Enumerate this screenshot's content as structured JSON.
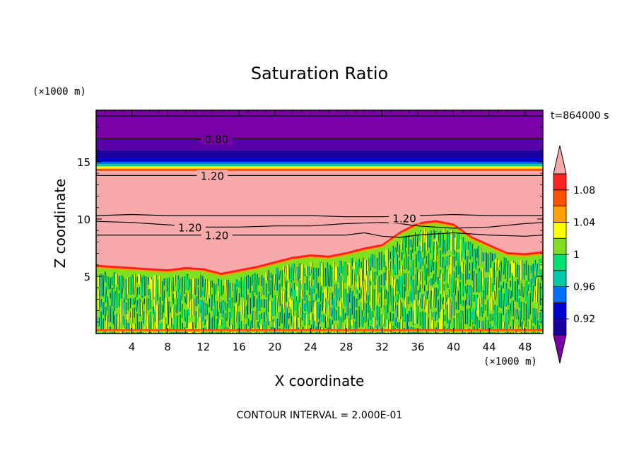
{
  "chart_data": {
    "type": "heatmap",
    "title": "Saturation Ratio",
    "xlabel": "X coordinate",
    "ylabel": "Z coordinate",
    "x_unit": "(×1000 m)",
    "z_unit": "(×1000 m)",
    "time_label": "t=864000 s",
    "footer": "CONTOUR INTERVAL = 2.000E-01",
    "xlim": [
      0,
      50
    ],
    "zlim": [
      0,
      19.5
    ],
    "x_ticks": [
      4,
      8,
      12,
      16,
      20,
      24,
      28,
      32,
      36,
      40,
      44,
      48
    ],
    "z_ticks": [
      5,
      10,
      15
    ],
    "colorbar": {
      "levels": [
        0.92,
        0.94,
        0.96,
        0.98,
        1.0,
        1.02,
        1.04,
        1.06,
        1.08
      ],
      "tick_labels": [
        "1.08",
        "1.04",
        "1",
        "0.96",
        "0.92"
      ],
      "tick_values": [
        1.08,
        1.04,
        1.0,
        0.96,
        0.92
      ],
      "colors": [
        "#7a00a8",
        "#1c00a0",
        "#0000cc",
        "#0070ff",
        "#00c8aa",
        "#00e070",
        "#80e020",
        "#ffff00",
        "#ffa000",
        "#ff5000",
        "#ff2020",
        "#f8aaaa"
      ]
    },
    "bands": [
      {
        "z_min": 17.0,
        "z_max": 19.5,
        "color": "#7a00a8"
      },
      {
        "z_min": 16.0,
        "z_max": 17.0,
        "color": "#5a00a8"
      },
      {
        "z_min": 15.3,
        "z_max": 16.0,
        "color": "#1c00a0"
      },
      {
        "z_min": 15.0,
        "z_max": 15.3,
        "color": "#0000cc"
      },
      {
        "z_min": 14.8,
        "z_max": 15.0,
        "color": "#0070ff"
      },
      {
        "z_min": 14.6,
        "z_max": 14.8,
        "color": "#00c8aa"
      },
      {
        "z_min": 14.4,
        "z_max": 14.6,
        "color": "#ffff00"
      },
      {
        "z_min": 14.2,
        "z_max": 14.4,
        "color": "#ff5000"
      }
    ],
    "contour_labels": [
      {
        "label": "0.80",
        "x": 13.5,
        "z": 17.0
      },
      {
        "label": "1.20",
        "x": 13.0,
        "z": 13.8
      },
      {
        "label": "1.20",
        "x": 34.5,
        "z": 10.1
      },
      {
        "label": "1.20",
        "x": 10.5,
        "z": 9.3
      },
      {
        "label": "1.20",
        "x": 13.5,
        "z": 8.6
      }
    ],
    "contour_lines": [
      {
        "value": 0.8,
        "x": [
          0,
          50
        ],
        "z": [
          17.0,
          17.0
        ]
      },
      {
        "value": 0.8,
        "x": [
          0,
          50
        ],
        "z": [
          19.0,
          19.0
        ]
      },
      {
        "value": 1.2,
        "x": [
          0,
          50
        ],
        "z": [
          13.8,
          13.8
        ]
      },
      {
        "value": 1.2,
        "x": [
          0,
          4,
          8,
          12,
          16,
          20,
          24,
          28,
          32,
          36,
          40,
          44,
          48,
          50
        ],
        "z": [
          10.3,
          10.4,
          10.3,
          10.3,
          10.3,
          10.3,
          10.3,
          10.2,
          10.2,
          10.3,
          10.4,
          10.3,
          10.3,
          10.3
        ]
      },
      {
        "value": 1.2,
        "x": [
          0,
          4,
          8,
          12,
          16,
          20,
          24,
          28,
          32,
          34,
          36,
          40,
          44,
          48,
          50
        ],
        "z": [
          9.8,
          9.7,
          9.5,
          9.3,
          9.3,
          9.4,
          9.4,
          9.6,
          9.7,
          9.6,
          9.4,
          9.2,
          9.3,
          9.6,
          9.7
        ]
      },
      {
        "value": 1.2,
        "x": [
          0,
          4,
          8,
          12,
          16,
          20,
          24,
          28,
          30,
          32,
          34,
          36,
          40,
          44,
          48,
          50
        ],
        "z": [
          8.6,
          8.6,
          8.6,
          8.6,
          8.6,
          8.6,
          8.6,
          8.6,
          8.8,
          8.5,
          8.4,
          8.6,
          8.8,
          8.6,
          8.5,
          8.6
        ]
      }
    ],
    "cloud_top": {
      "x": [
        0,
        2,
        4,
        6,
        8,
        10,
        12,
        14,
        16,
        18,
        20,
        22,
        24,
        26,
        28,
        30,
        32,
        34,
        36,
        38,
        40,
        42,
        44,
        46,
        48,
        50
      ],
      "z": [
        5.7,
        5.6,
        5.5,
        5.4,
        5.3,
        5.5,
        5.4,
        5.0,
        5.3,
        5.6,
        6.0,
        6.4,
        6.6,
        6.5,
        6.8,
        7.2,
        7.5,
        8.6,
        9.4,
        9.6,
        9.3,
        8.2,
        7.5,
        6.8,
        6.7,
        6.9
      ]
    }
  }
}
